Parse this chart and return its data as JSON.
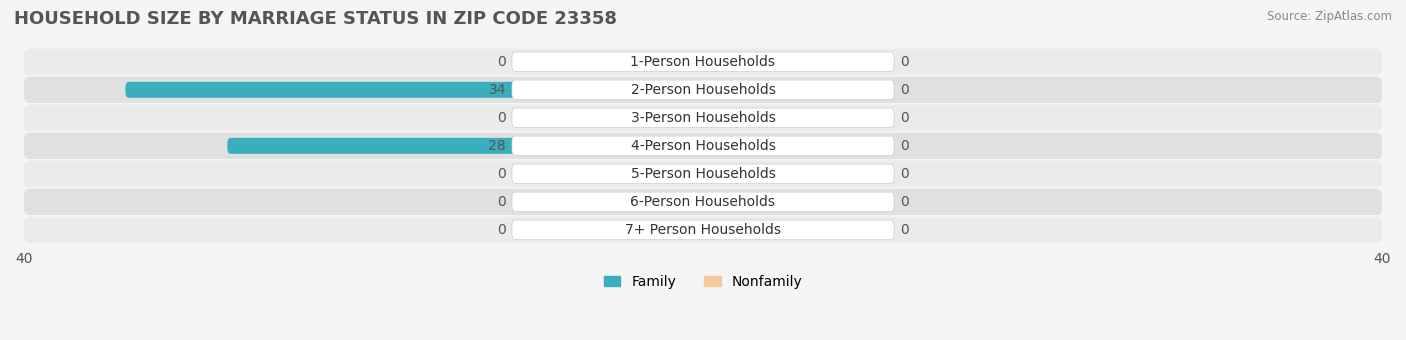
{
  "title": "HOUSEHOLD SIZE BY MARRIAGE STATUS IN ZIP CODE 23358",
  "source": "Source: ZipAtlas.com",
  "categories": [
    "7+ Person Households",
    "6-Person Households",
    "5-Person Households",
    "4-Person Households",
    "3-Person Households",
    "2-Person Households",
    "1-Person Households"
  ],
  "family_values": [
    0,
    0,
    0,
    28,
    0,
    34,
    0
  ],
  "nonfamily_values": [
    0,
    0,
    0,
    0,
    0,
    0,
    0
  ],
  "family_color": "#3AAEBC",
  "nonfamily_color": "#F5C99A",
  "family_label": "Family",
  "nonfamily_label": "Nonfamily",
  "xlim": 40,
  "background_color": "#f0f0f0",
  "row_bg_light": "#e8e8e8",
  "row_bg_dark": "#d8d8d8",
  "title_fontsize": 13,
  "label_fontsize": 10,
  "tick_fontsize": 10
}
